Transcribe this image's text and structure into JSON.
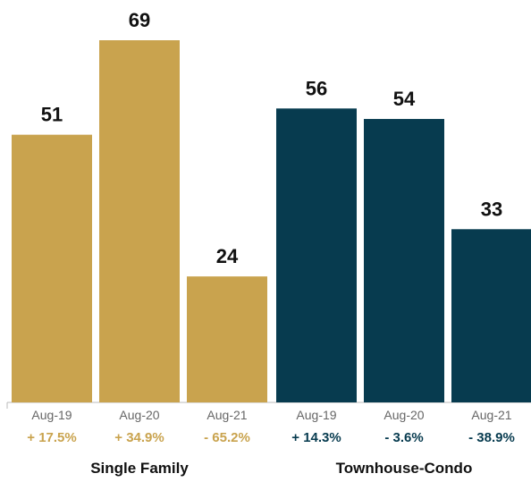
{
  "chart_data": {
    "type": "bar",
    "title": "",
    "xlabel": "",
    "ylabel": "",
    "ylim": [
      0,
      75
    ],
    "grid": false,
    "groups": [
      {
        "name": "Single Family",
        "color": "#C9A34E",
        "categories": [
          "Aug-19",
          "Aug-20",
          "Aug-21"
        ],
        "values": [
          51,
          69,
          24
        ],
        "value_labels": [
          "51",
          "69",
          "24"
        ],
        "changes": [
          "+ 17.5%",
          "+ 34.9%",
          "- 65.2%"
        ]
      },
      {
        "name": "Townhouse-Condo",
        "color": "#073B4F",
        "categories": [
          "Aug-19",
          "Aug-20",
          "Aug-21"
        ],
        "values": [
          56,
          54,
          33
        ],
        "value_labels": [
          "56",
          "54",
          "33"
        ],
        "changes": [
          "+ 14.3%",
          "- 3.6%",
          "- 38.9%"
        ]
      }
    ]
  }
}
